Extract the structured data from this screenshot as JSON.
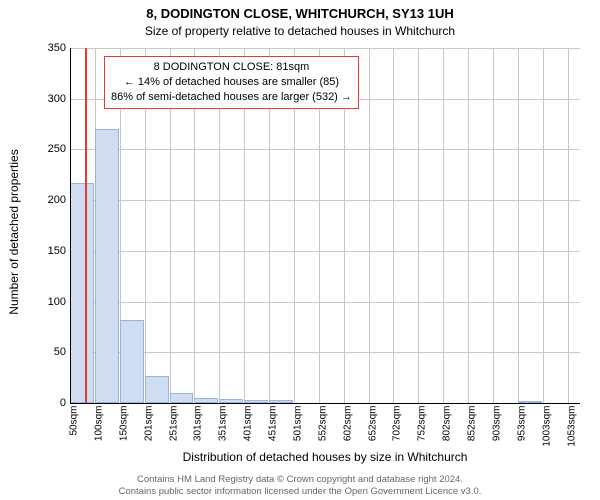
{
  "header": {
    "title": "8, DODINGTON CLOSE, WHITCHURCH, SY13 1UH",
    "subtitle": "Size of property relative to detached houses in Whitchurch"
  },
  "chart": {
    "type": "histogram",
    "background_color": "#ffffff",
    "grid_color": "#c8c8c8",
    "axis_color": "#000000",
    "bar_fill": "#cfdcf2",
    "bar_stroke": "#9ab3db",
    "ylabel": "Number of detached properties",
    "xlabel": "Distribution of detached houses by size in Whitchurch",
    "label_fontsize": 12,
    "tick_fontsize": 11,
    "ylim": [
      0,
      350
    ],
    "ytick_step": 50,
    "yticks": [
      0,
      50,
      100,
      150,
      200,
      250,
      300,
      350
    ],
    "xtick_labels": [
      "50sqm",
      "100sqm",
      "150sqm",
      "201sqm",
      "251sqm",
      "301sqm",
      "351sqm",
      "401sqm",
      "451sqm",
      "501sqm",
      "552sqm",
      "602sqm",
      "652sqm",
      "702sqm",
      "752sqm",
      "802sqm",
      "852sqm",
      "903sqm",
      "953sqm",
      "1003sqm",
      "1053sqm"
    ],
    "xlim": [
      50,
      1075
    ],
    "bar_width_units": 50,
    "bars": [
      {
        "x": 50,
        "y": 217
      },
      {
        "x": 100,
        "y": 270
      },
      {
        "x": 150,
        "y": 82
      },
      {
        "x": 200,
        "y": 27
      },
      {
        "x": 250,
        "y": 10
      },
      {
        "x": 300,
        "y": 5
      },
      {
        "x": 350,
        "y": 4
      },
      {
        "x": 400,
        "y": 3
      },
      {
        "x": 450,
        "y": 3
      },
      {
        "x": 500,
        "y": 0
      },
      {
        "x": 550,
        "y": 0
      },
      {
        "x": 600,
        "y": 0
      },
      {
        "x": 650,
        "y": 0
      },
      {
        "x": 700,
        "y": 0
      },
      {
        "x": 750,
        "y": 0
      },
      {
        "x": 800,
        "y": 0
      },
      {
        "x": 850,
        "y": 0
      },
      {
        "x": 900,
        "y": 0
      },
      {
        "x": 950,
        "y": 2
      },
      {
        "x": 1000,
        "y": 0
      }
    ],
    "reference_line": {
      "x": 81,
      "color": "#e53935",
      "width": 2
    },
    "annotation": {
      "line1": "8 DODINGTON CLOSE: 81sqm",
      "line2": "← 14% of detached houses are smaller (85)",
      "line3": "86% of semi-detached houses are larger (532) →",
      "border_color": "#e53935",
      "bg_color": "#ffffff",
      "fontsize": 11
    }
  },
  "footer": {
    "line1": "Contains HM Land Registry data © Crown copyright and database right 2024.",
    "line2": "Contains public sector information licensed under the Open Government Licence v3.0."
  }
}
